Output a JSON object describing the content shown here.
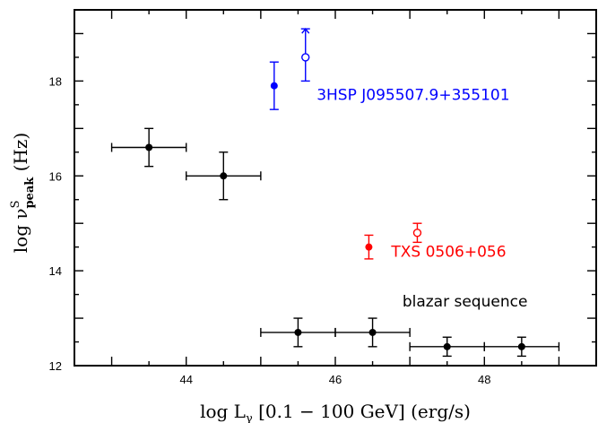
{
  "chart_data": {
    "type": "scatter",
    "xlabel": "log Lγ [0.1 − 100 GeV] (erg/s)",
    "xlabel_parts": {
      "main": "log L",
      "sub": "γ",
      "rest": " [0.1 − 100 GeV] (erg/s)"
    },
    "ylabel": "log νSpeak (Hz)",
    "ylabel_parts": {
      "main": "log ",
      "nu": "ν",
      "sup": "S",
      "sub": "peak",
      "rest": " (Hz)"
    },
    "xlim": [
      42.5,
      49.5
    ],
    "ylim": [
      12,
      19.5
    ],
    "xticks": [
      44,
      46,
      48
    ],
    "yticks": [
      12,
      14,
      16,
      18
    ],
    "grid": false,
    "colors": {
      "sequence": "#000000",
      "hsp": "#0000ff",
      "txs": "#ff0000"
    },
    "series": [
      {
        "name": "blazar sequence",
        "color": "#000000",
        "points": [
          {
            "x": 43.5,
            "y": 16.6,
            "xerr": 0.5,
            "yerr": 0.4,
            "marker": "filled"
          },
          {
            "x": 44.5,
            "y": 16.0,
            "xerr": 0.5,
            "yerr": 0.5,
            "marker": "filled"
          },
          {
            "x": 45.5,
            "y": 12.7,
            "xerr": 0.5,
            "yerr": 0.3,
            "marker": "filled"
          },
          {
            "x": 46.5,
            "y": 12.7,
            "xerr": 0.5,
            "yerr": 0.3,
            "marker": "filled"
          },
          {
            "x": 47.5,
            "y": 12.4,
            "xerr": 0.5,
            "yerr": 0.2,
            "marker": "filled"
          },
          {
            "x": 48.5,
            "y": 12.4,
            "xerr": 0.5,
            "yerr": 0.2,
            "marker": "filled"
          }
        ]
      },
      {
        "name": "3HSP J095507.9+355101",
        "color": "#0000ff",
        "points": [
          {
            "x": 45.18,
            "y": 17.9,
            "yerr_up": 0.5,
            "yerr_down": 0.5,
            "marker": "filled"
          },
          {
            "x": 45.6,
            "y": 18.5,
            "yerr_up": 0.6,
            "yerr_down": 0.5,
            "marker": "open",
            "lower_limit_arrow": true
          }
        ]
      },
      {
        "name": "TXS 0506+056",
        "color": "#ff0000",
        "points": [
          {
            "x": 46.45,
            "y": 14.5,
            "yerr_up": 0.25,
            "yerr_down": 0.25,
            "marker": "filled"
          },
          {
            "x": 47.1,
            "y": 14.8,
            "yerr_up": 0.2,
            "yerr_down": 0.2,
            "marker": "open"
          }
        ]
      }
    ],
    "annotations": [
      {
        "text": "3HSP J095507.9+355101",
        "x": 45.75,
        "y": 17.6,
        "color": "#0000ff"
      },
      {
        "text": "TXS 0506+056",
        "x": 46.75,
        "y": 14.3,
        "color": "#ff0000"
      },
      {
        "text": "blazar sequence",
        "x": 46.9,
        "y": 13.25,
        "color": "#000000"
      }
    ]
  }
}
